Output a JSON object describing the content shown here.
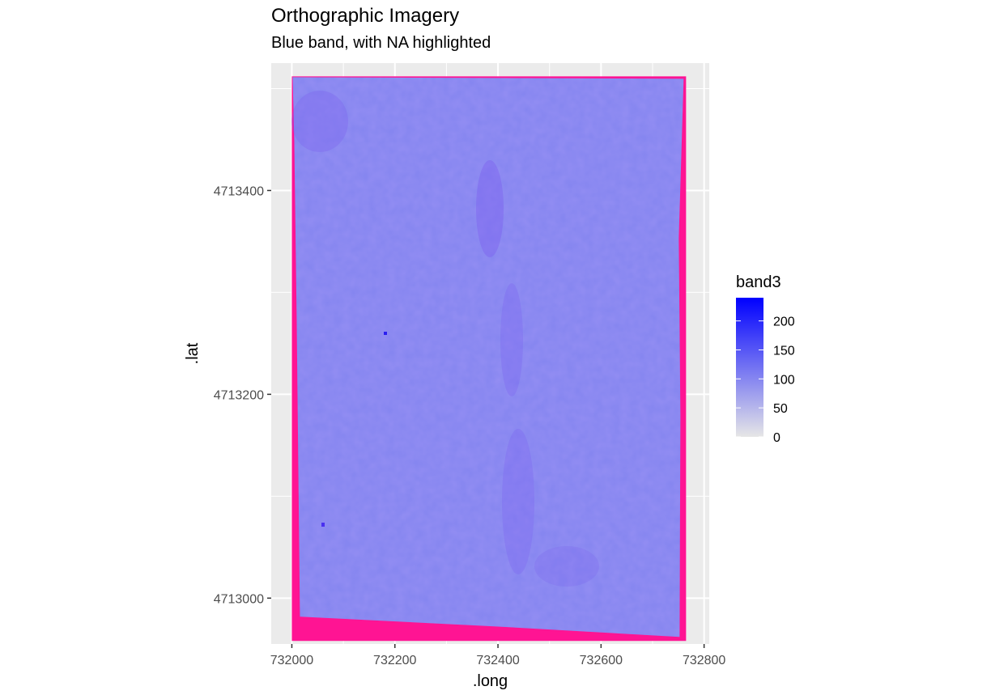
{
  "chart_data": {
    "type": "heatmap",
    "title": "Orthographic Imagery",
    "subtitle": "Blue band, with NA highlighted",
    "xlabel": ".long",
    "ylabel": ".lat",
    "xlim": [
      731960,
      732810
    ],
    "ylim": [
      4712955,
      4713525
    ],
    "x_ticks": [
      732000,
      732200,
      732400,
      732600,
      732800
    ],
    "y_ticks": [
      4713000,
      4713200,
      4713400
    ],
    "x_tick_labels": [
      "732000",
      "732200",
      "732400",
      "732600",
      "732800"
    ],
    "y_tick_labels": [
      "4713000",
      "4713200",
      "4713400"
    ],
    "raster_extent": {
      "x": [
        732000,
        732765
      ],
      "y": [
        4712958,
        4713512
      ]
    },
    "na_color": "#ff1493",
    "panel_background": "#ebebeb",
    "grid": true,
    "legend": {
      "title": "band3",
      "position": "right",
      "range": [
        0,
        240
      ],
      "breaks": [
        0,
        50,
        100,
        150,
        200
      ],
      "break_labels": [
        "0",
        "50",
        "100",
        "150",
        "200"
      ],
      "low_color": "#e6e6e6",
      "high_color": "#0000ff"
    },
    "typical_value": 100
  }
}
